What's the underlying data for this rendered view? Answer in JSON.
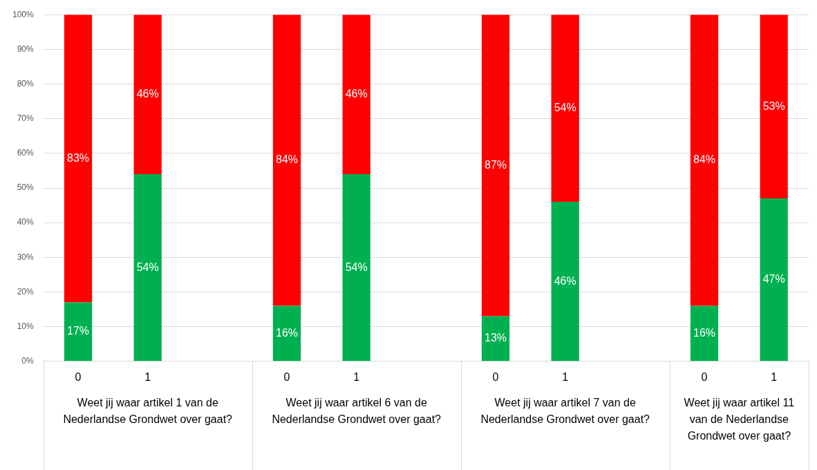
{
  "chart_data": {
    "type": "bar",
    "stacked": true,
    "categories": [
      "0",
      "1",
      null,
      "0",
      "1",
      null,
      "0",
      "1",
      null,
      "0",
      "1"
    ],
    "series": [
      {
        "color": "#00b050",
        "values": [
          17,
          54,
          null,
          16,
          54,
          null,
          13,
          46,
          null,
          16,
          47
        ],
        "value_labels": [
          "17%",
          "54%",
          null,
          "16%",
          "54%",
          null,
          "13%",
          "46%",
          null,
          "16%",
          "47%"
        ]
      },
      {
        "color": "#ff0000",
        "values": [
          83,
          46,
          null,
          84,
          46,
          null,
          87,
          54,
          null,
          84,
          53
        ],
        "value_labels": [
          "83%",
          "46%",
          null,
          "84%",
          "46%",
          null,
          "87%",
          "54%",
          null,
          "84%",
          "53%"
        ]
      }
    ],
    "ylim": [
      0,
      100
    ],
    "yticks": [
      {
        "value": 0,
        "label": "0%"
      },
      {
        "value": 10,
        "label": "10%"
      },
      {
        "value": 20,
        "label": "20%"
      },
      {
        "value": 30,
        "label": "30%"
      },
      {
        "value": 40,
        "label": "40%"
      },
      {
        "value": 50,
        "label": "50%"
      },
      {
        "value": 60,
        "label": "60%"
      },
      {
        "value": 70,
        "label": "70%"
      },
      {
        "value": 80,
        "label": "80%"
      },
      {
        "value": 90,
        "label": "90%"
      },
      {
        "value": 100,
        "label": "100%"
      }
    ],
    "grid": "y",
    "legend": false,
    "annotations": [
      "Weet jij waar artikel 1 van de Nederlandse Grondwet over gaat?",
      "Weet jij waar artikel 6 van de Nederlandse Grondwet over gaat?",
      "Weet jij waar artikel 7 van de Nederlandse Grondwet over gaat?",
      "Weet jij waar artikel 11 van de Nederlandse Grondwet over gaat?"
    ]
  }
}
